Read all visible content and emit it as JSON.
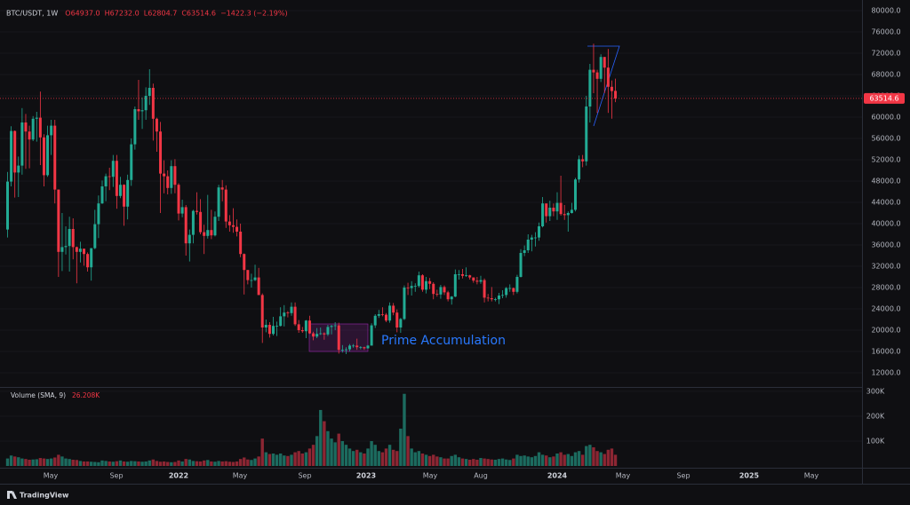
{
  "chart_data": {
    "type": "candlestick",
    "symbol": "BTC/USDT, 1W",
    "ohlc_header": [
      "O64937.0",
      "H67232.0",
      "L62804.7",
      "C63514.6",
      "−1422.3 (−2.19%)"
    ],
    "annotation": "Prime Accumulation",
    "up_color": "#22ab94",
    "down_color": "#f23645",
    "grid": true,
    "ylim": [
      9500,
      82000
    ],
    "yticks": [
      {
        "value": 80000,
        "label": "80000.0"
      },
      {
        "value": 76000,
        "label": "76000.0"
      },
      {
        "value": 72000,
        "label": "72000.0"
      },
      {
        "value": 68000,
        "label": "68000.0"
      },
      {
        "value": 64000,
        "label": "64000.0"
      },
      {
        "value": 60000,
        "label": "60000.0"
      },
      {
        "value": 56000,
        "label": "56000.0"
      },
      {
        "value": 52000,
        "label": "52000.0"
      },
      {
        "value": 48000,
        "label": "48000.0"
      },
      {
        "value": 44000,
        "label": "44000.0"
      },
      {
        "value": 40000,
        "label": "40000.0"
      },
      {
        "value": 36000,
        "label": "36000.0"
      },
      {
        "value": 32000,
        "label": "32000.0"
      },
      {
        "value": 28000,
        "label": "28000.0"
      },
      {
        "value": 24000,
        "label": "24000.0"
      },
      {
        "value": 20000,
        "label": "20000.0"
      },
      {
        "value": 16000,
        "label": "16000.0"
      },
      {
        "value": 12000,
        "label": "12000.0"
      }
    ],
    "last_price": 63514.6,
    "x_labels": [
      "May",
      "Sep",
      "2022",
      "May",
      "Sep",
      "2023",
      "May",
      "Aug",
      "2024",
      "May",
      "Sep",
      "2025",
      "May"
    ],
    "candles": [
      [
        38900,
        49700,
        37400,
        47900
      ],
      [
        47900,
        58300,
        47000,
        57400
      ],
      [
        57400,
        57500,
        44900,
        49600
      ],
      [
        49600,
        52600,
        45000,
        50900
      ],
      [
        50900,
        61700,
        49200,
        59000
      ],
      [
        59000,
        60600,
        50300,
        57300
      ],
      [
        57300,
        58400,
        50400,
        55800
      ],
      [
        55800,
        60200,
        55500,
        59700
      ],
      [
        59700,
        61000,
        55400,
        59900
      ],
      [
        59900,
        64800,
        51000,
        56200
      ],
      [
        56200,
        56800,
        47000,
        49100
      ],
      [
        49100,
        58400,
        48800,
        56600
      ],
      [
        56600,
        59500,
        52900,
        58400
      ],
      [
        58400,
        59500,
        43800,
        46400
      ],
      [
        46400,
        46400,
        30000,
        34700
      ],
      [
        34700,
        42000,
        31100,
        35600
      ],
      [
        35600,
        39500,
        34200,
        35800
      ],
      [
        35800,
        41300,
        31000,
        39000
      ],
      [
        39000,
        41000,
        33300,
        35600
      ],
      [
        35600,
        35700,
        28800,
        34700
      ],
      [
        34700,
        36600,
        32700,
        35300
      ],
      [
        35300,
        35100,
        32100,
        34300
      ],
      [
        34300,
        34600,
        31000,
        31800
      ],
      [
        31800,
        35400,
        29300,
        35400
      ],
      [
        35400,
        42600,
        35200,
        39900
      ],
      [
        39900,
        45300,
        37300,
        43800
      ],
      [
        43800,
        48100,
        43700,
        47000
      ],
      [
        47000,
        49400,
        44200,
        48900
      ],
      [
        48900,
        50500,
        46300,
        48800
      ],
      [
        48800,
        52900,
        46900,
        51800
      ],
      [
        51800,
        52900,
        42800,
        45200
      ],
      [
        45200,
        48800,
        44800,
        47300
      ],
      [
        47300,
        47400,
        39600,
        43200
      ],
      [
        43200,
        49200,
        40800,
        48200
      ],
      [
        48200,
        56000,
        47100,
        54900
      ],
      [
        54900,
        62000,
        53900,
        61500
      ],
      [
        61500,
        67000,
        59500,
        61100
      ],
      [
        61100,
        63700,
        57800,
        61300
      ],
      [
        61300,
        65600,
        59500,
        64000
      ],
      [
        64000,
        69000,
        62300,
        65500
      ],
      [
        65500,
        66300,
        55600,
        59700
      ],
      [
        59700,
        59900,
        53500,
        57300
      ],
      [
        57300,
        59100,
        42000,
        49400
      ],
      [
        49400,
        51900,
        45700,
        48900
      ],
      [
        48900,
        50000,
        45500,
        46700
      ],
      [
        46700,
        51900,
        45600,
        50800
      ],
      [
        50800,
        52100,
        45700,
        47300
      ],
      [
        47300,
        47600,
        40600,
        41900
      ],
      [
        41900,
        44500,
        41200,
        43100
      ],
      [
        43100,
        43500,
        34000,
        36300
      ],
      [
        36300,
        38900,
        32900,
        37900
      ],
      [
        37900,
        42600,
        36300,
        42400
      ],
      [
        42400,
        45900,
        41700,
        42200
      ],
      [
        42200,
        44600,
        38000,
        38400
      ],
      [
        38400,
        39800,
        34300,
        37700
      ],
      [
        37700,
        45400,
        37200,
        38800
      ],
      [
        38800,
        42600,
        37100,
        37800
      ],
      [
        37800,
        42300,
        37600,
        41300
      ],
      [
        41300,
        47300,
        40500,
        46800
      ],
      [
        46800,
        48200,
        44200,
        46400
      ],
      [
        46400,
        47200,
        39200,
        40400
      ],
      [
        40400,
        41600,
        38500,
        39700
      ],
      [
        39700,
        42900,
        38300,
        39400
      ],
      [
        39400,
        40800,
        37600,
        38500
      ],
      [
        38500,
        40000,
        33700,
        34300
      ],
      [
        34300,
        34400,
        26700,
        31300
      ],
      [
        31300,
        31300,
        28600,
        29400
      ],
      [
        29400,
        30600,
        28000,
        29400
      ],
      [
        29400,
        32300,
        29200,
        29900
      ],
      [
        29900,
        31700,
        26600,
        26600
      ],
      [
        26600,
        26900,
        17600,
        20500
      ],
      [
        20500,
        22000,
        19600,
        21000
      ],
      [
        21000,
        21500,
        18600,
        19300
      ],
      [
        19300,
        22500,
        19000,
        20800
      ],
      [
        20800,
        21600,
        18900,
        20800
      ],
      [
        20800,
        24300,
        20700,
        22600
      ],
      [
        22600,
        24700,
        20700,
        23300
      ],
      [
        23300,
        23600,
        22400,
        23200
      ],
      [
        23200,
        25200,
        22700,
        24400
      ],
      [
        24400,
        25200,
        20800,
        21100
      ],
      [
        21100,
        21900,
        19500,
        20000
      ],
      [
        20000,
        20600,
        19500,
        19800
      ],
      [
        19800,
        21900,
        18500,
        21800
      ],
      [
        21800,
        22700,
        19300,
        19400
      ],
      [
        19400,
        19700,
        18100,
        18800
      ],
      [
        18800,
        20400,
        18500,
        19300
      ],
      [
        19300,
        20500,
        19100,
        19400
      ],
      [
        19400,
        19600,
        18200,
        19200
      ],
      [
        19200,
        21000,
        18900,
        20600
      ],
      [
        20600,
        21000,
        19200,
        20800
      ],
      [
        20800,
        21500,
        20000,
        20900
      ],
      [
        20900,
        21400,
        15600,
        16300
      ],
      [
        16300,
        17200,
        15800,
        16300
      ],
      [
        16300,
        16800,
        15500,
        16400
      ],
      [
        16400,
        17400,
        16000,
        17100
      ],
      [
        17100,
        17400,
        16700,
        17100
      ],
      [
        17100,
        18400,
        16300,
        16800
      ],
      [
        16800,
        17000,
        16400,
        16800
      ],
      [
        16800,
        16900,
        16300,
        16600
      ],
      [
        16600,
        17200,
        16500,
        17100
      ],
      [
        17100,
        21300,
        17100,
        20900
      ],
      [
        20900,
        23000,
        20400,
        22700
      ],
      [
        22700,
        23800,
        22300,
        23000
      ],
      [
        23000,
        24300,
        22600,
        22900
      ],
      [
        22900,
        23200,
        21500,
        21800
      ],
      [
        21800,
        25200,
        21400,
        24600
      ],
      [
        24600,
        25100,
        22800,
        23300
      ],
      [
        23300,
        23900,
        19600,
        20500
      ],
      [
        20500,
        22300,
        19500,
        22100
      ],
      [
        22100,
        28400,
        21900,
        28000
      ],
      [
        28000,
        28900,
        26600,
        27900
      ],
      [
        27900,
        29200,
        26500,
        28300
      ],
      [
        28300,
        28800,
        27200,
        28300
      ],
      [
        28300,
        31000,
        28000,
        30300
      ],
      [
        30300,
        30500,
        27200,
        27600
      ],
      [
        27600,
        30000,
        26900,
        29200
      ],
      [
        29200,
        29800,
        27700,
        28700
      ],
      [
        28700,
        29000,
        25800,
        26800
      ],
      [
        26800,
        27600,
        26300,
        26700
      ],
      [
        26700,
        28500,
        25900,
        28100
      ],
      [
        28100,
        28400,
        26600,
        27100
      ],
      [
        27100,
        27400,
        25400,
        25800
      ],
      [
        25800,
        26400,
        24800,
        26300
      ],
      [
        26300,
        31400,
        26200,
        30500
      ],
      [
        30500,
        31300,
        29500,
        30500
      ],
      [
        30500,
        31500,
        29700,
        30200
      ],
      [
        30200,
        31800,
        30000,
        30300
      ],
      [
        30300,
        30400,
        29500,
        29900
      ],
      [
        29900,
        29900,
        28900,
        29300
      ],
      [
        29300,
        30000,
        28600,
        29100
      ],
      [
        29100,
        30200,
        28700,
        29400
      ],
      [
        29400,
        29700,
        25200,
        26100
      ],
      [
        26100,
        26800,
        25400,
        26000
      ],
      [
        26000,
        28100,
        25400,
        25800
      ],
      [
        25800,
        26100,
        25400,
        25800
      ],
      [
        25800,
        27000,
        24900,
        26500
      ],
      [
        26500,
        27500,
        26000,
        26600
      ],
      [
        26600,
        28100,
        26100,
        27900
      ],
      [
        27900,
        28600,
        27200,
        27900
      ],
      [
        27900,
        28000,
        26600,
        27200
      ],
      [
        27200,
        30400,
        26900,
        30000
      ],
      [
        30000,
        35200,
        29900,
        34500
      ],
      [
        34500,
        35900,
        33900,
        35000
      ],
      [
        35000,
        38000,
        34500,
        37000
      ],
      [
        37000,
        37900,
        34800,
        37400
      ],
      [
        37400,
        38400,
        35700,
        37400
      ],
      [
        37400,
        40200,
        36800,
        39500
      ],
      [
        39500,
        45000,
        39300,
        43800
      ],
      [
        43800,
        43400,
        40200,
        41400
      ],
      [
        41400,
        44300,
        40500,
        43000
      ],
      [
        43000,
        43800,
        41400,
        42300
      ],
      [
        42300,
        45900,
        40700,
        43900
      ],
      [
        43900,
        49000,
        41500,
        41800
      ],
      [
        41800,
        43500,
        40700,
        41600
      ],
      [
        41600,
        42300,
        38500,
        42000
      ],
      [
        42000,
        43900,
        41900,
        42600
      ],
      [
        42600,
        48600,
        42300,
        48300
      ],
      [
        48300,
        52800,
        47700,
        52100
      ],
      [
        52100,
        52900,
        50600,
        51700
      ],
      [
        51700,
        64000,
        50900,
        62000
      ],
      [
        62000,
        70000,
        59000,
        68900
      ],
      [
        68900,
        73800,
        64500,
        68400
      ],
      [
        68400,
        68900,
        60800,
        67200
      ],
      [
        67200,
        71800,
        66600,
        71300
      ],
      [
        71300,
        71300,
        64500,
        69300
      ],
      [
        69300,
        72800,
        60800,
        65700
      ],
      [
        65700,
        66900,
        59700,
        64900
      ],
      [
        64937,
        67232,
        62804.7,
        63514.6
      ]
    ],
    "volume": {
      "title": "Volume (SMA, 9)",
      "sma_label": "26.208K",
      "up_color": "#1c6b5f",
      "down_color": "#8c2633",
      "ylim": [
        0,
        314000
      ],
      "yticks": [
        {
          "value": 300000,
          "label": "300K"
        },
        {
          "value": 200000,
          "label": "200K"
        },
        {
          "value": 100000,
          "label": "100K"
        }
      ],
      "values": [
        30000,
        42000,
        38000,
        35000,
        30000,
        28000,
        25000,
        26000,
        27000,
        32000,
        30000,
        28000,
        30000,
        34000,
        45000,
        38000,
        30000,
        28000,
        25000,
        24000,
        20000,
        18000,
        18000,
        17000,
        16000,
        15000,
        22000,
        20000,
        18000,
        17000,
        19000,
        22000,
        18000,
        17000,
        20000,
        19000,
        18000,
        17000,
        18000,
        22000,
        26000,
        20000,
        17000,
        18000,
        16000,
        15000,
        16000,
        22000,
        18000,
        28000,
        26000,
        20000,
        19000,
        18000,
        22000,
        24000,
        18000,
        17000,
        20000,
        18000,
        19000,
        17000,
        16000,
        18000,
        28000,
        34000,
        26000,
        24000,
        30000,
        38000,
        110000,
        55000,
        48000,
        50000,
        45000,
        50000,
        42000,
        40000,
        45000,
        55000,
        60000,
        50000,
        55000,
        70000,
        85000,
        120000,
        225000,
        180000,
        140000,
        110000,
        95000,
        130000,
        100000,
        85000,
        70000,
        60000,
        65000,
        55000,
        50000,
        70000,
        100000,
        85000,
        60000,
        55000,
        70000,
        85000,
        65000,
        60000,
        150000,
        290000,
        120000,
        70000,
        55000,
        60000,
        50000,
        45000,
        40000,
        45000,
        38000,
        35000,
        30000,
        30000,
        40000,
        45000,
        35000,
        30000,
        28000,
        25000,
        28000,
        25000,
        32000,
        30000,
        28000,
        26000,
        25000,
        28000,
        30000,
        26000,
        24000,
        30000,
        45000,
        40000,
        42000,
        38000,
        35000,
        40000,
        55000,
        45000,
        42000,
        35000,
        38000,
        50000,
        55000,
        45000,
        48000,
        40000,
        55000,
        60000,
        45000,
        80000,
        85000,
        75000,
        60000,
        55000,
        48000,
        65000,
        70000,
        45000
      ]
    },
    "logo": "TradingView"
  }
}
